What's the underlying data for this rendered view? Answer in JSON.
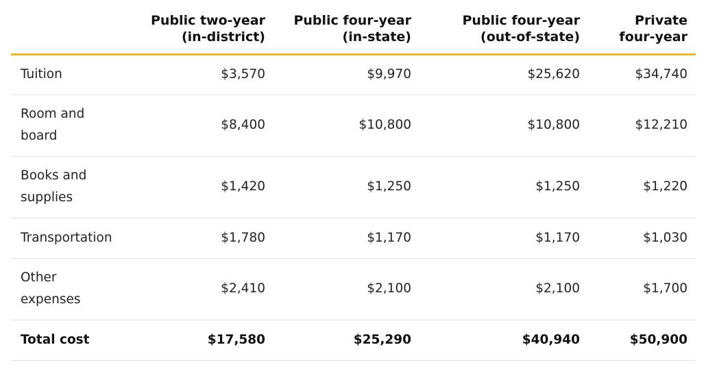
{
  "table": {
    "headers": [
      "",
      "Public two-year\n(in-district)",
      "Public four-year\n(in-state)",
      "Public four-year\n(out-of-state)",
      "Private\nfour-year"
    ],
    "rows": [
      {
        "label": "Tuition",
        "values": [
          "$3,570",
          "$9,970",
          "$25,620",
          "$34,740"
        ]
      },
      {
        "label": "Room and\nboard",
        "values": [
          "$8,400",
          "$10,800",
          "$10,800",
          "$12,210"
        ]
      },
      {
        "label": "Books and\nsupplies",
        "values": [
          "$1,420",
          "$1,250",
          "$1,250",
          "$1,220"
        ]
      },
      {
        "label": "Transportation",
        "values": [
          "$1,780",
          "$1,170",
          "$1,170",
          "$1,030"
        ]
      },
      {
        "label": "Other\nexpenses",
        "values": [
          "$2,410",
          "$2,100",
          "$2,100",
          "$1,700"
        ]
      }
    ],
    "total": {
      "label": "Total cost",
      "values": [
        "$17,580",
        "$25,290",
        "$40,940",
        "$50,900"
      ]
    }
  },
  "colors": {
    "header_rule": "#f2b824",
    "row_divider": "#e2e2e2",
    "text": "#222222"
  }
}
